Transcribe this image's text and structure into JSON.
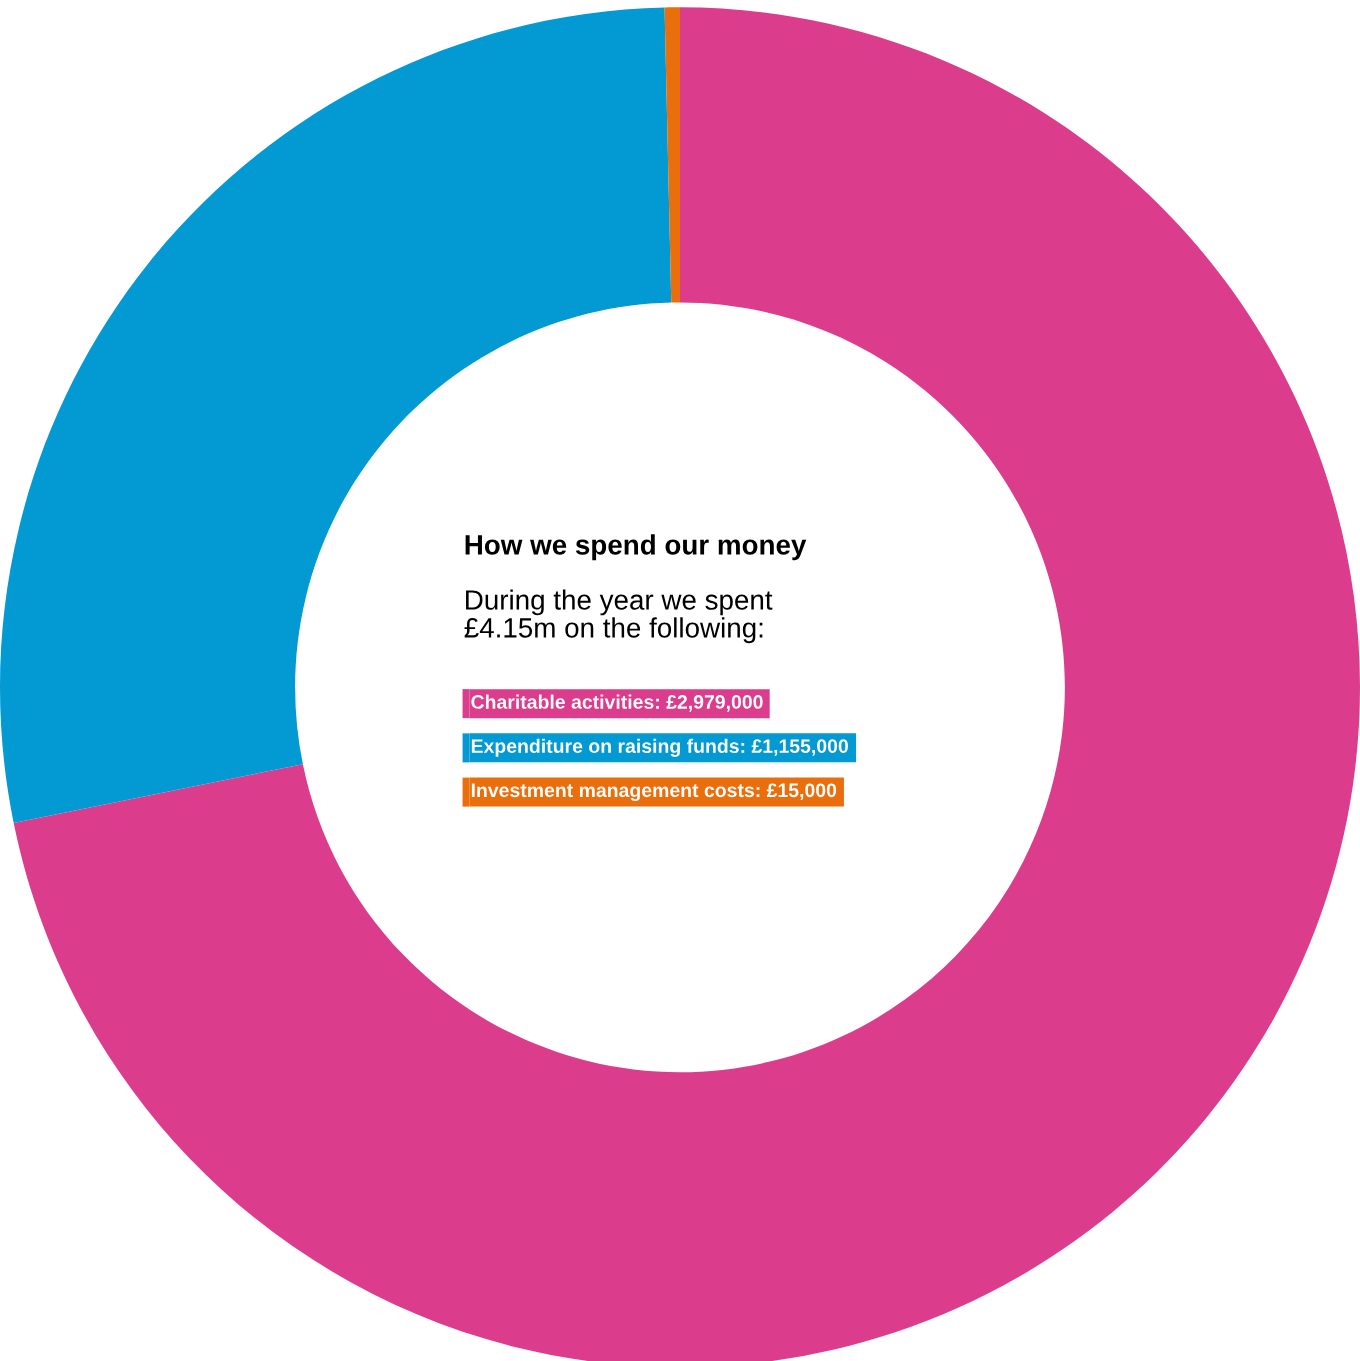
{
  "chart_data": {
    "type": "donut",
    "title": "How we spend our money",
    "subtitle": "During the year we spent\n£4.15m on the following:",
    "categories": [
      "Charitable activities",
      "Expenditure on raising funds",
      "Investment management costs"
    ],
    "values": [
      2979000,
      1155000,
      15000
    ],
    "value_labels": [
      "£2,979,000",
      "£1,155,000",
      "£15,000"
    ],
    "colors": [
      "#db3c8c",
      "#0399d2",
      "#ea6f0c"
    ],
    "legend": "center"
  }
}
